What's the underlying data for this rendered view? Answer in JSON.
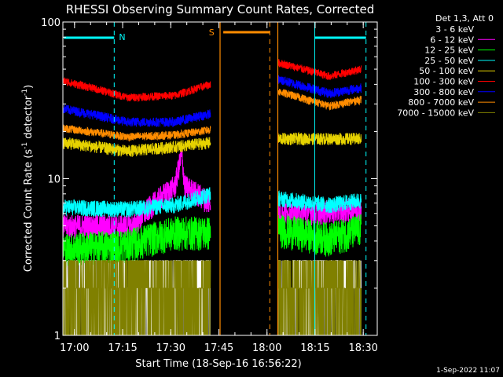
{
  "chart_data": {
    "type": "line",
    "title": "RHESSI Observing Summary Count Rates, Corrected",
    "xlabel": "Start Time (18-Sep-16 16:56:22)",
    "ylabel_main": "Corrected Count Rate (s",
    "ylabel_sup1": "-1",
    "ylabel_mid": " detector",
    "ylabel_sup2": "-1",
    "ylabel_end": ")",
    "yscale": "log",
    "ylim": [
      1,
      100
    ],
    "xlim_minutes": [
      0,
      98
    ],
    "x_ticks": [
      "17:00",
      "17:15",
      "17:30",
      "17:45",
      "18:00",
      "18:15",
      "18:30"
    ],
    "y_ticks": [
      "1",
      "10",
      "100"
    ],
    "legend_title": "Det 1,3, Att 0",
    "legend_position": "right",
    "footer": "1-Sep-2022 11:07",
    "flags": [
      {
        "label": "N",
        "color": "#00ffff"
      },
      {
        "label": "S",
        "color": "#ff8c00"
      }
    ],
    "series": [
      {
        "name": "3 - 6 keV",
        "color": "#ffffff",
        "legend_color": "#000000",
        "segments": [
          [
            [
              0,
              1.3
            ],
            [
              33,
              1.5
            ],
            [
              46,
              2.3
            ]
          ],
          [
            [
              67,
              1.4
            ],
            [
              83,
              1.6
            ],
            [
              93,
              2.1
            ]
          ]
        ]
      },
      {
        "name": "6 - 12 keV",
        "color": "#ff00ff",
        "segments": [
          [
            [
              0,
              5.0
            ],
            [
              22,
              5.0
            ],
            [
              35,
              9.0
            ],
            [
              37,
              14
            ],
            [
              38,
              9
            ],
            [
              46,
              7.0
            ]
          ],
          [
            [
              67,
              6.0
            ],
            [
              85,
              6.2
            ],
            [
              93,
              6.5
            ]
          ]
        ]
      },
      {
        "name": "12 - 25 keV",
        "color": "#00ff00",
        "segments": [
          [
            [
              0,
              3.6
            ],
            [
              20,
              3.8
            ],
            [
              35,
              4.6
            ],
            [
              46,
              4.6
            ]
          ],
          [
            [
              67,
              4.8
            ],
            [
              83,
              4.2
            ],
            [
              93,
              4.8
            ]
          ]
        ]
      },
      {
        "name": "25 - 50 keV",
        "color": "#00ffff",
        "segments": [
          [
            [
              0,
              6.6
            ],
            [
              20,
              6.4
            ],
            [
              35,
              6.8
            ],
            [
              46,
              8.0
            ]
          ],
          [
            [
              67,
              7.5
            ],
            [
              83,
              6.8
            ],
            [
              93,
              7.3
            ]
          ]
        ]
      },
      {
        "name": "50 - 100 keV",
        "color": "#e6d200",
        "segments": [
          [
            [
              0,
              17
            ],
            [
              20,
              15
            ],
            [
              35,
              16
            ],
            [
              46,
              17
            ]
          ],
          [
            [
              67,
              18
            ],
            [
              83,
              18
            ],
            [
              93,
              18
            ]
          ]
        ]
      },
      {
        "name": "100 - 300 keV",
        "color": "#ff0000",
        "segments": [
          [
            [
              0,
              42
            ],
            [
              20,
              33
            ],
            [
              35,
              34
            ],
            [
              46,
              40
            ]
          ],
          [
            [
              67,
              55
            ],
            [
              83,
              45
            ],
            [
              93,
              50
            ]
          ]
        ]
      },
      {
        "name": "300 - 800 keV",
        "color": "#0000ff",
        "segments": [
          [
            [
              0,
              28
            ],
            [
              20,
              23
            ],
            [
              35,
              23
            ],
            [
              46,
              26
            ]
          ],
          [
            [
              67,
              43
            ],
            [
              83,
              35
            ],
            [
              93,
              38
            ]
          ]
        ]
      },
      {
        "name": "800 - 7000 keV",
        "color": "#ff8c00",
        "segments": [
          [
            [
              0,
              21
            ],
            [
              20,
              18.5
            ],
            [
              35,
              19
            ],
            [
              46,
              20.5
            ]
          ],
          [
            [
              67,
              36
            ],
            [
              83,
              29
            ],
            [
              93,
              32
            ]
          ]
        ]
      },
      {
        "name": "7000 - 15000 keV",
        "color": "#808000",
        "segments": [
          [
            [
              0,
              1.4
            ],
            [
              33,
              1.5
            ],
            [
              46,
              1.5
            ]
          ],
          [
            [
              67,
              1.5
            ],
            [
              83,
              1.5
            ],
            [
              93,
              1.5
            ]
          ]
        ]
      }
    ]
  }
}
